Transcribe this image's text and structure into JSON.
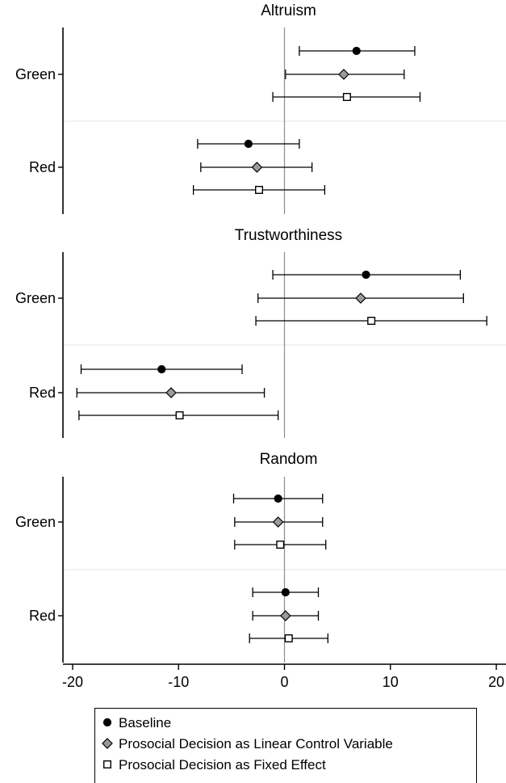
{
  "chart_data": {
    "type": "scatter",
    "xlim": [
      -20.8,
      20.6
    ],
    "xticks": [
      -20,
      -10,
      0,
      10,
      20
    ],
    "xtick_labels": [
      "-20",
      "-10",
      "0",
      "10",
      "20"
    ],
    "reference_line_x": 0,
    "grid": false,
    "legend": {
      "placement": "bottom",
      "entries": [
        {
          "label": "Baseline",
          "marker": "filled-circle",
          "color": "#000000"
        },
        {
          "label": "Prosocial Decision as Linear Control Variable",
          "marker": "gray-diamond",
          "color": "#9a9a9a"
        },
        {
          "label": "Prosocial Decision as Fixed Effect",
          "marker": "hollow-square",
          "color": "#ffffff"
        }
      ]
    },
    "panels": [
      {
        "title": "Altruism",
        "groups": [
          {
            "label": "Green",
            "estimates": [
              {
                "series": "Baseline",
                "point": 6.8,
                "lo": 1.4,
                "hi": 12.3
              },
              {
                "series": "Prosocial Decision as Linear Control Variable",
                "point": 5.6,
                "lo": 0.1,
                "hi": 11.3
              },
              {
                "series": "Prosocial Decision as Fixed Effect",
                "point": 5.9,
                "lo": -1.1,
                "hi": 12.8
              }
            ]
          },
          {
            "label": "Red",
            "estimates": [
              {
                "series": "Baseline",
                "point": -3.4,
                "lo": -8.2,
                "hi": 1.4
              },
              {
                "series": "Prosocial Decision as Linear Control Variable",
                "point": -2.6,
                "lo": -7.9,
                "hi": 2.6
              },
              {
                "series": "Prosocial Decision as Fixed Effect",
                "point": -2.4,
                "lo": -8.6,
                "hi": 3.8
              }
            ]
          }
        ]
      },
      {
        "title": "Trustworthiness",
        "groups": [
          {
            "label": "Green",
            "estimates": [
              {
                "series": "Baseline",
                "point": 7.7,
                "lo": -1.1,
                "hi": 16.6
              },
              {
                "series": "Prosocial Decision as Linear Control Variable",
                "point": 7.2,
                "lo": -2.5,
                "hi": 16.9
              },
              {
                "series": "Prosocial Decision as Fixed Effect",
                "point": 8.2,
                "lo": -2.7,
                "hi": 19.1
              }
            ]
          },
          {
            "label": "Red",
            "estimates": [
              {
                "series": "Baseline",
                "point": -11.6,
                "lo": -19.2,
                "hi": -4.0
              },
              {
                "series": "Prosocial Decision as Linear Control Variable",
                "point": -10.7,
                "lo": -19.6,
                "hi": -1.9
              },
              {
                "series": "Prosocial Decision as Fixed Effect",
                "point": -9.9,
                "lo": -19.4,
                "hi": -0.6
              }
            ]
          }
        ]
      },
      {
        "title": "Random",
        "groups": [
          {
            "label": "Green",
            "estimates": [
              {
                "series": "Baseline",
                "point": -0.6,
                "lo": -4.8,
                "hi": 3.6
              },
              {
                "series": "Prosocial Decision as Linear Control Variable",
                "point": -0.6,
                "lo": -4.7,
                "hi": 3.6
              },
              {
                "series": "Prosocial Decision as Fixed Effect",
                "point": -0.4,
                "lo": -4.7,
                "hi": 3.9
              }
            ]
          },
          {
            "label": "Red",
            "estimates": [
              {
                "series": "Baseline",
                "point": 0.1,
                "lo": -3.0,
                "hi": 3.2
              },
              {
                "series": "Prosocial Decision as Linear Control Variable",
                "point": 0.1,
                "lo": -3.0,
                "hi": 3.2
              },
              {
                "series": "Prosocial Decision as Fixed Effect",
                "point": 0.4,
                "lo": -3.3,
                "hi": 4.1
              }
            ]
          }
        ]
      }
    ]
  }
}
